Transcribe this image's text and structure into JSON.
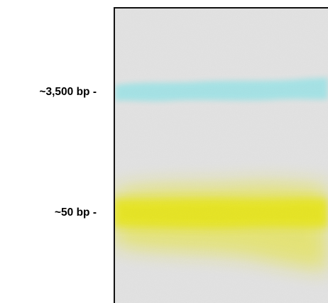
{
  "markers": [
    {
      "label": "~3,500 bp -",
      "color": "#9fe3e6"
    },
    {
      "label": "~50 bp -",
      "color": "#e7e51f"
    }
  ],
  "gel_color": "#e2e2e2",
  "gel_border_color": "#111111"
}
